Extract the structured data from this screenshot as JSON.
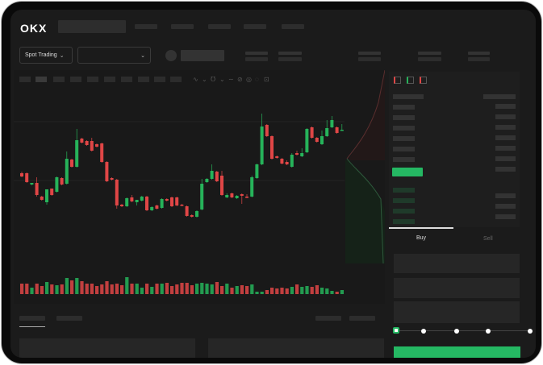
{
  "brand": {
    "logo": "OKX"
  },
  "toolbar": {
    "market_select": "Spot Trading",
    "pair_select": ""
  },
  "trade": {
    "tabs": [
      {
        "label": "Buy",
        "active": true
      },
      {
        "label": "Sell",
        "active": false
      }
    ],
    "slider_percent": 0
  },
  "colors": {
    "up": "#26b35a",
    "down": "#e04646",
    "accent": "#25b863",
    "background": "#1b1b1b"
  },
  "icons": [
    "chevron-down-icon",
    "orderbook-both-icon",
    "orderbook-bids-icon",
    "orderbook-asks-icon",
    "line-tool-icon",
    "pencil-icon",
    "circle-icon",
    "settings-icon"
  ],
  "chart_data": {
    "type": "candlestick",
    "title": "",
    "candles": [
      [
        97,
        99,
        92,
        93
      ],
      [
        97,
        98,
        85,
        86
      ],
      [
        83,
        85,
        82,
        85
      ],
      [
        85,
        92,
        68,
        70
      ],
      [
        68,
        69,
        63,
        64
      ],
      [
        61,
        77,
        58,
        77
      ],
      [
        78,
        78,
        69,
        70
      ],
      [
        74,
        93,
        73,
        92
      ],
      [
        91,
        92,
        82,
        83
      ],
      [
        84,
        124,
        83,
        115
      ],
      [
        114,
        115,
        104,
        105
      ],
      [
        105,
        152,
        104,
        138
      ],
      [
        140,
        141,
        134,
        135
      ],
      [
        137,
        138,
        131,
        132
      ],
      [
        137,
        141,
        124,
        125
      ],
      [
        133,
        134,
        129,
        130
      ],
      [
        134,
        135,
        110,
        111
      ],
      [
        111,
        112,
        86,
        87
      ],
      [
        91,
        92,
        88,
        89
      ],
      [
        89,
        90,
        53,
        57
      ],
      [
        58,
        59,
        55,
        56
      ],
      [
        56,
        67,
        55,
        66
      ],
      [
        67,
        70,
        61,
        62
      ],
      [
        61,
        64,
        57,
        64
      ],
      [
        63,
        69,
        62,
        68
      ],
      [
        68,
        69,
        50,
        51
      ],
      [
        51,
        56,
        50,
        55
      ],
      [
        57,
        58,
        52,
        53
      ],
      [
        54,
        66,
        53,
        65
      ],
      [
        65,
        66,
        62,
        63
      ],
      [
        67,
        68,
        55,
        56
      ],
      [
        67,
        68,
        56,
        57
      ],
      [
        58,
        59,
        56,
        57
      ],
      [
        56,
        57,
        43,
        44
      ],
      [
        45,
        46,
        42,
        43
      ],
      [
        43,
        51,
        42,
        50
      ],
      [
        52,
        90,
        51,
        84
      ],
      [
        86,
        91,
        85,
        90
      ],
      [
        90,
        108,
        89,
        100
      ],
      [
        99,
        100,
        86,
        87
      ],
      [
        94,
        100,
        69,
        70
      ],
      [
        67,
        72,
        66,
        70
      ],
      [
        72,
        73,
        66,
        67
      ],
      [
        66,
        70,
        65,
        69
      ],
      [
        71,
        72,
        59,
        69
      ],
      [
        68,
        71,
        66,
        67
      ],
      [
        68,
        94,
        67,
        92
      ],
      [
        91,
        109,
        90,
        108
      ],
      [
        108,
        171,
        107,
        155
      ],
      [
        157,
        158,
        142,
        143
      ],
      [
        143,
        144,
        114,
        115
      ],
      [
        118,
        119,
        115,
        116
      ],
      [
        115,
        116,
        108,
        109
      ],
      [
        111,
        113,
        107,
        108
      ],
      [
        105,
        122,
        104,
        120
      ],
      [
        122,
        125,
        119,
        120
      ],
      [
        118,
        128,
        117,
        122
      ],
      [
        123,
        153,
        122,
        152
      ],
      [
        154,
        155,
        140,
        141
      ],
      [
        141,
        142,
        135,
        136
      ],
      [
        133,
        150,
        132,
        143
      ],
      [
        143,
        163,
        142,
        153
      ],
      [
        154,
        168,
        153,
        163
      ],
      [
        154,
        155,
        146,
        147
      ],
      [
        151,
        158,
        150,
        151
      ]
    ],
    "volume": [
      13,
      13,
      8,
      13,
      10,
      15,
      12,
      11,
      12,
      20,
      17,
      20,
      16,
      13,
      13,
      10,
      12,
      16,
      12,
      13,
      11,
      21,
      13,
      13,
      8,
      13,
      9,
      13,
      13,
      14,
      10,
      12,
      14,
      14,
      11,
      13,
      14,
      13,
      12,
      15,
      10,
      13,
      8,
      10,
      11,
      10,
      12,
      3,
      3,
      5,
      8,
      7,
      8,
      7,
      9,
      12,
      9,
      10,
      9,
      11,
      8,
      7,
      4,
      3,
      5
    ]
  }
}
